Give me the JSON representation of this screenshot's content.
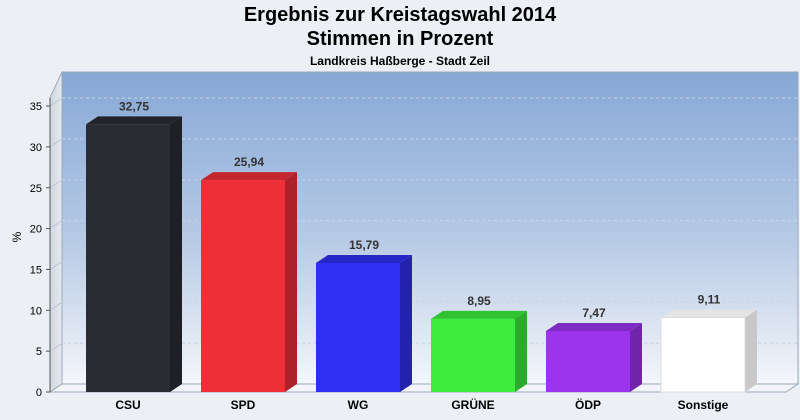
{
  "header": {
    "title_line1": "Ergebnis zur Kreistagswahl 2014",
    "title_line2": "Stimmen in Prozent",
    "subtitle": "Landkreis Haßberge - Stadt Zeil"
  },
  "chart_data": {
    "type": "bar",
    "title": "Ergebnis zur Kreistagswahl 2014 Stimmen in Prozent",
    "subtitle": "Landkreis Haßberge - Stadt Zeil",
    "ylabel": "%",
    "xlabel": "",
    "ylim": [
      0,
      37
    ],
    "yticks": [
      0,
      5,
      10,
      15,
      20,
      25,
      30,
      35
    ],
    "grid": true,
    "categories": [
      "CSU",
      "SPD",
      "WG",
      "GRÜNE",
      "ÖDP",
      "Sonstige"
    ],
    "values": [
      32.75,
      25.94,
      15.79,
      8.95,
      7.47,
      9.11
    ],
    "value_labels": [
      "32,75",
      "25,94",
      "15,79",
      "8,95",
      "7,47",
      "9,11"
    ],
    "colors": [
      "#2a2c33",
      "#ee2f37",
      "#2f2ff2",
      "#3cec3c",
      "#9b34ec",
      "#ffffff"
    ]
  }
}
